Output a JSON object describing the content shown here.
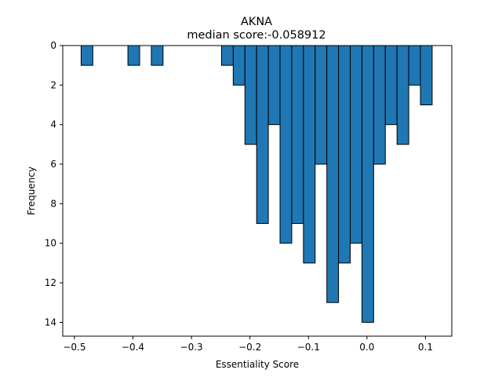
{
  "chart_data": {
    "type": "bar",
    "title": "AKNA",
    "subtitle": "median score:-0.058912",
    "xlabel": "Essentiality Score",
    "ylabel": "Frequency",
    "xlim": [
      -0.52,
      0.145
    ],
    "ylim": [
      14.7,
      0
    ],
    "y_inverted": true,
    "x_ticks": [
      -0.5,
      -0.4,
      -0.3,
      -0.2,
      -0.1,
      0.0,
      0.1
    ],
    "x_tick_labels": [
      "−0.5",
      "−0.4",
      "−0.3",
      "−0.2",
      "−0.1",
      "0.0",
      "0.1"
    ],
    "y_ticks": [
      0,
      2,
      4,
      6,
      8,
      10,
      12,
      14
    ],
    "y_tick_labels": [
      "0",
      "2",
      "4",
      "6",
      "8",
      "10",
      "12",
      "14"
    ],
    "bin_width": 0.02,
    "bins_start": [
      -0.4886,
      -0.4086,
      -0.3686,
      -0.2486,
      -0.2286,
      -0.2086,
      -0.1886,
      -0.1686,
      -0.1486,
      -0.1286,
      -0.1086,
      -0.0886,
      -0.0686,
      -0.0486,
      -0.0286,
      -0.0086,
      0.0114,
      0.0314,
      0.0514,
      0.0714,
      0.0914
    ],
    "values": [
      1,
      1,
      1,
      1,
      2,
      5,
      9,
      4,
      10,
      9,
      11,
      6,
      13,
      11,
      10,
      14,
      6,
      4,
      5,
      2,
      3
    ],
    "bar_color": "#1f77b4",
    "edge_color": "#000000",
    "grid": false
  }
}
